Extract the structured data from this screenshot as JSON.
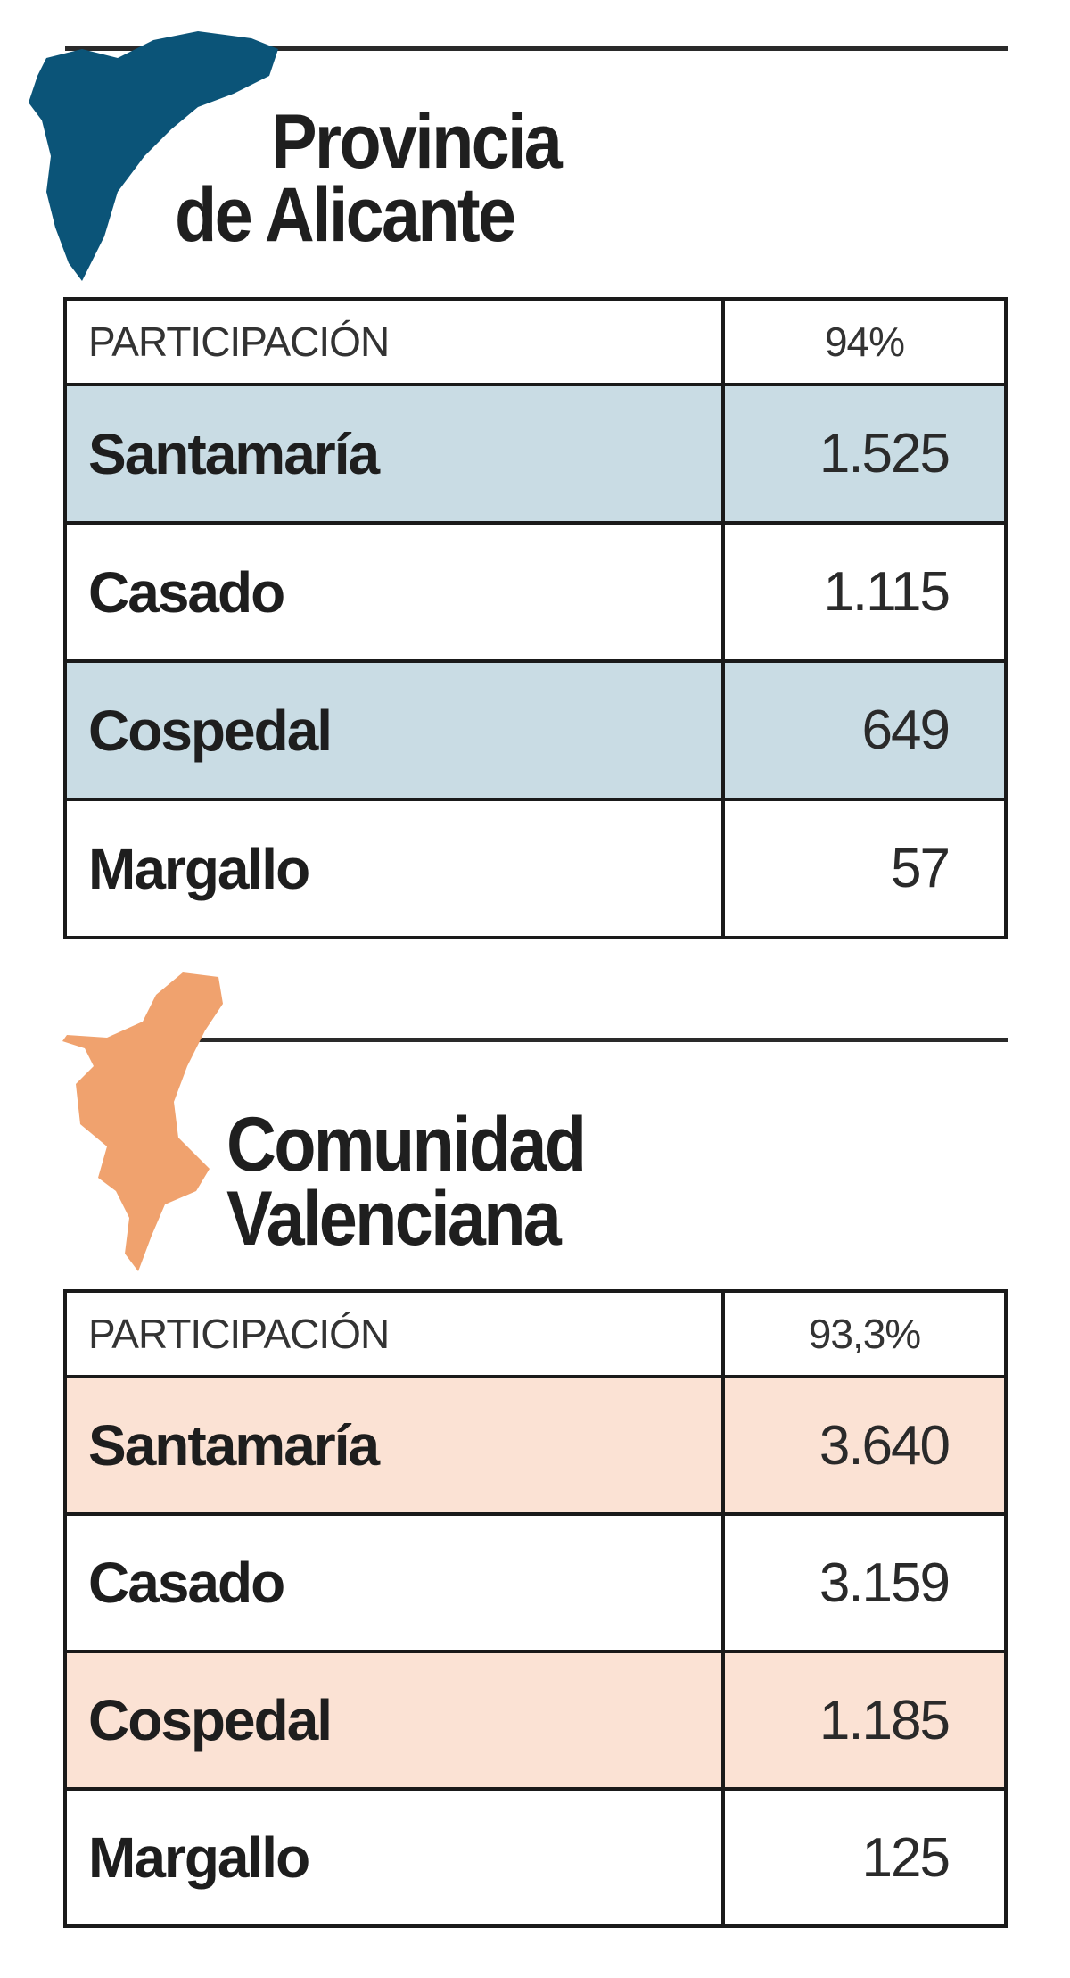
{
  "colors": {
    "alicante_map": "#0b5478",
    "alicante_row": "#c9dce4",
    "valencia_map": "#f0a26e",
    "valencia_row": "#fbe2d4"
  },
  "sections": [
    {
      "title_line1": "Provincia",
      "title_line2": "de Alicante",
      "participation_label": "PARTICIPACIÓN",
      "participation_value": "94%",
      "rows": [
        {
          "name": "Santamaría",
          "votes": "1.525"
        },
        {
          "name": "Casado",
          "votes": "1.115"
        },
        {
          "name": "Cospedal",
          "votes": "649"
        },
        {
          "name": "Margallo",
          "votes": "57"
        }
      ]
    },
    {
      "title_line1": "Comunidad",
      "title_line2": "Valenciana",
      "participation_label": "PARTICIPACIÓN",
      "participation_value": "93,3%",
      "rows": [
        {
          "name": "Santamaría",
          "votes": "3.640"
        },
        {
          "name": "Casado",
          "votes": "3.159"
        },
        {
          "name": "Cospedal",
          "votes": "1.185"
        },
        {
          "name": "Margallo",
          "votes": "125"
        }
      ]
    }
  ]
}
